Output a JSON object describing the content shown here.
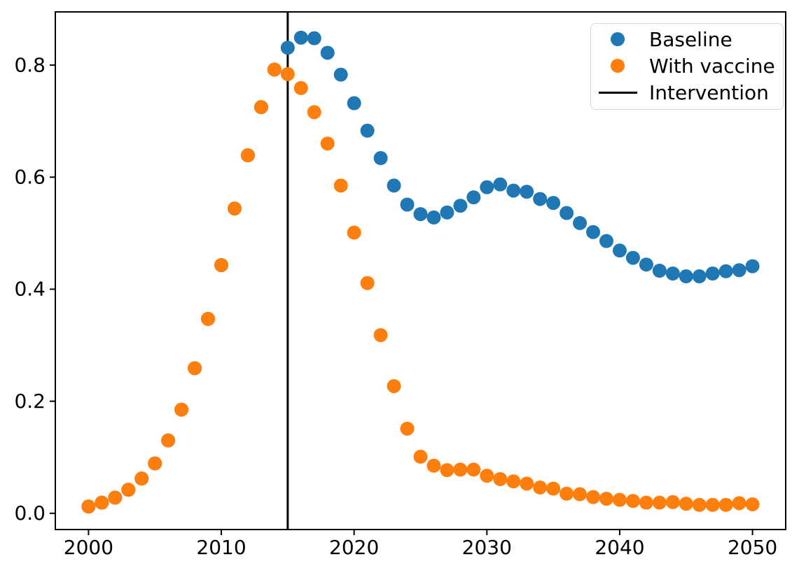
{
  "chart_data": {
    "type": "scatter",
    "title": "",
    "xlabel": "",
    "ylabel": "",
    "grid": false,
    "legend_position": "upper right",
    "xlim": [
      1997.5,
      2052.5
    ],
    "ylim": [
      -0.029,
      0.895
    ],
    "xticks": [
      2000,
      2010,
      2020,
      2030,
      2040,
      2050
    ],
    "xtick_labels": [
      "2000",
      "2010",
      "2020",
      "2030",
      "2040",
      "2050"
    ],
    "yticks": [
      0.0,
      0.2,
      0.4,
      0.6,
      0.8
    ],
    "ytick_labels": [
      "0.0",
      "0.2",
      "0.4",
      "0.6",
      "0.8"
    ],
    "x": [
      2000,
      2001,
      2002,
      2003,
      2004,
      2005,
      2006,
      2007,
      2008,
      2009,
      2010,
      2011,
      2012,
      2013,
      2014,
      2015,
      2016,
      2017,
      2018,
      2019,
      2020,
      2021,
      2022,
      2023,
      2024,
      2025,
      2026,
      2027,
      2028,
      2029,
      2030,
      2031,
      2032,
      2033,
      2034,
      2035,
      2036,
      2037,
      2038,
      2039,
      2040,
      2041,
      2042,
      2043,
      2044,
      2045,
      2046,
      2047,
      2048,
      2049,
      2050
    ],
    "series": [
      {
        "name": "Baseline",
        "color": "#1f77b4",
        "values": [
          0.012,
          0.019,
          0.028,
          0.042,
          0.062,
          0.089,
          0.13,
          0.185,
          0.259,
          0.347,
          0.443,
          0.544,
          0.639,
          0.725,
          0.792,
          0.831,
          0.849,
          0.848,
          0.822,
          0.783,
          0.732,
          0.683,
          0.634,
          0.585,
          0.551,
          0.534,
          0.528,
          0.537,
          0.549,
          0.564,
          0.582,
          0.587,
          0.576,
          0.574,
          0.561,
          0.554,
          0.536,
          0.518,
          0.502,
          0.486,
          0.469,
          0.456,
          0.444,
          0.433,
          0.428,
          0.423,
          0.423,
          0.428,
          0.432,
          0.434,
          0.441
        ]
      },
      {
        "name": "With vaccine",
        "color": "#ff7f0e",
        "values": [
          0.012,
          0.019,
          0.028,
          0.042,
          0.062,
          0.089,
          0.13,
          0.185,
          0.259,
          0.347,
          0.443,
          0.544,
          0.639,
          0.725,
          0.792,
          0.784,
          0.759,
          0.716,
          0.66,
          0.585,
          0.501,
          0.411,
          0.318,
          0.227,
          0.151,
          0.101,
          0.085,
          0.077,
          0.078,
          0.078,
          0.067,
          0.061,
          0.057,
          0.053,
          0.046,
          0.044,
          0.035,
          0.034,
          0.029,
          0.026,
          0.024,
          0.022,
          0.019,
          0.019,
          0.02,
          0.017,
          0.015,
          0.015,
          0.015,
          0.018,
          0.016
        ]
      }
    ],
    "vline": {
      "label": "Intervention",
      "x": 2015,
      "color": "#000000"
    }
  }
}
